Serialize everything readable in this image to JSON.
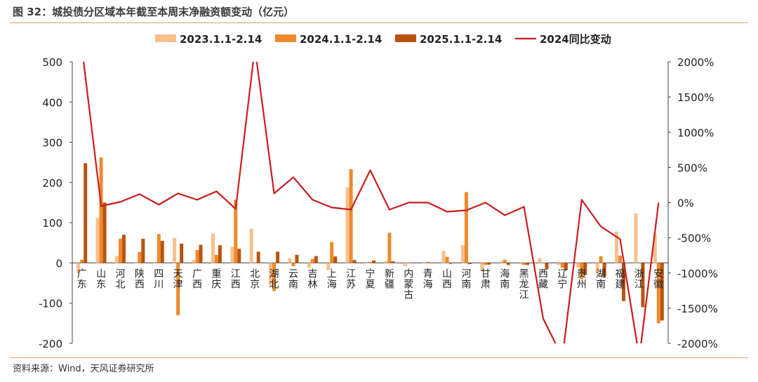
{
  "title": "图 32：城投债分区域本年截至本周末净融资额变动（亿元）",
  "source": "资料来源：Wind，天风证券研究所",
  "colors": {
    "s2023": "#f7c08e",
    "s2024": "#ee8a2c",
    "s2025": "#b8540f",
    "line": "#c81d1d",
    "accent_rule": "#e0a060"
  },
  "chart_data": {
    "type": "bar",
    "categories": [
      "广东",
      "山东",
      "河北",
      "陕西",
      "四川",
      "天津",
      "广西",
      "重庆",
      "江西",
      "北京",
      "湖北",
      "云南",
      "吉林",
      "上海",
      "江苏",
      "宁夏",
      "新疆",
      "内蒙古",
      "青海",
      "山西",
      "河南",
      "甘肃",
      "海南",
      "黑龙江",
      "西藏",
      "辽宁",
      "贵州",
      "湖南",
      "福建",
      "浙江",
      "安徽"
    ],
    "series": [
      {
        "name": "2023.1.1-2.14",
        "axis": "left",
        "values": [
          -25,
          112,
          18,
          2,
          3,
          62,
          7,
          73,
          40,
          85,
          -55,
          12,
          -12,
          -18,
          188,
          3,
          5,
          -8,
          0,
          30,
          44,
          -20,
          4,
          -3,
          12,
          -5,
          -12,
          -28,
          78,
          123,
          72
        ]
      },
      {
        "name": "2024.1.1-2.14",
        "axis": "left",
        "values": [
          8,
          262,
          60,
          27,
          72,
          -130,
          32,
          20,
          157,
          0,
          -70,
          -8,
          10,
          52,
          233,
          2,
          75,
          0,
          3,
          15,
          176,
          -5,
          8,
          -5,
          0,
          -12,
          -40,
          17,
          18,
          0,
          -150
        ]
      },
      {
        "name": "2025.1.1-2.14",
        "axis": "left",
        "values": [
          248,
          150,
          70,
          60,
          55,
          48,
          45,
          44,
          35,
          28,
          28,
          20,
          17,
          16,
          7,
          6,
          4,
          1,
          0,
          -2,
          -3,
          -4,
          -5,
          -5,
          -15,
          -18,
          -30,
          -35,
          -95,
          -110,
          -143
        ]
      },
      {
        "name": "2024同比变动",
        "axis": "right",
        "type": "line",
        "values": [
          2200,
          -50,
          10,
          120,
          -30,
          130,
          40,
          160,
          -90,
          2200,
          130,
          360,
          40,
          -70,
          -100,
          460,
          -100,
          0,
          0,
          -130,
          -110,
          0,
          -180,
          -60,
          -1650,
          -2200,
          40,
          -340,
          -520,
          -2200,
          0
        ]
      }
    ],
    "ylim": [
      -200,
      500
    ],
    "yticks": [
      "500",
      "400",
      "300",
      "200",
      "100",
      "0",
      "-100",
      "-200"
    ],
    "y2lim": [
      -2000,
      2000
    ],
    "y2ticks": [
      "2000%",
      "1500%",
      "1000%",
      "500%",
      "0%",
      "-500%",
      "-1000%",
      "-1500%",
      "-2000%"
    ],
    "legend_position": "top"
  }
}
